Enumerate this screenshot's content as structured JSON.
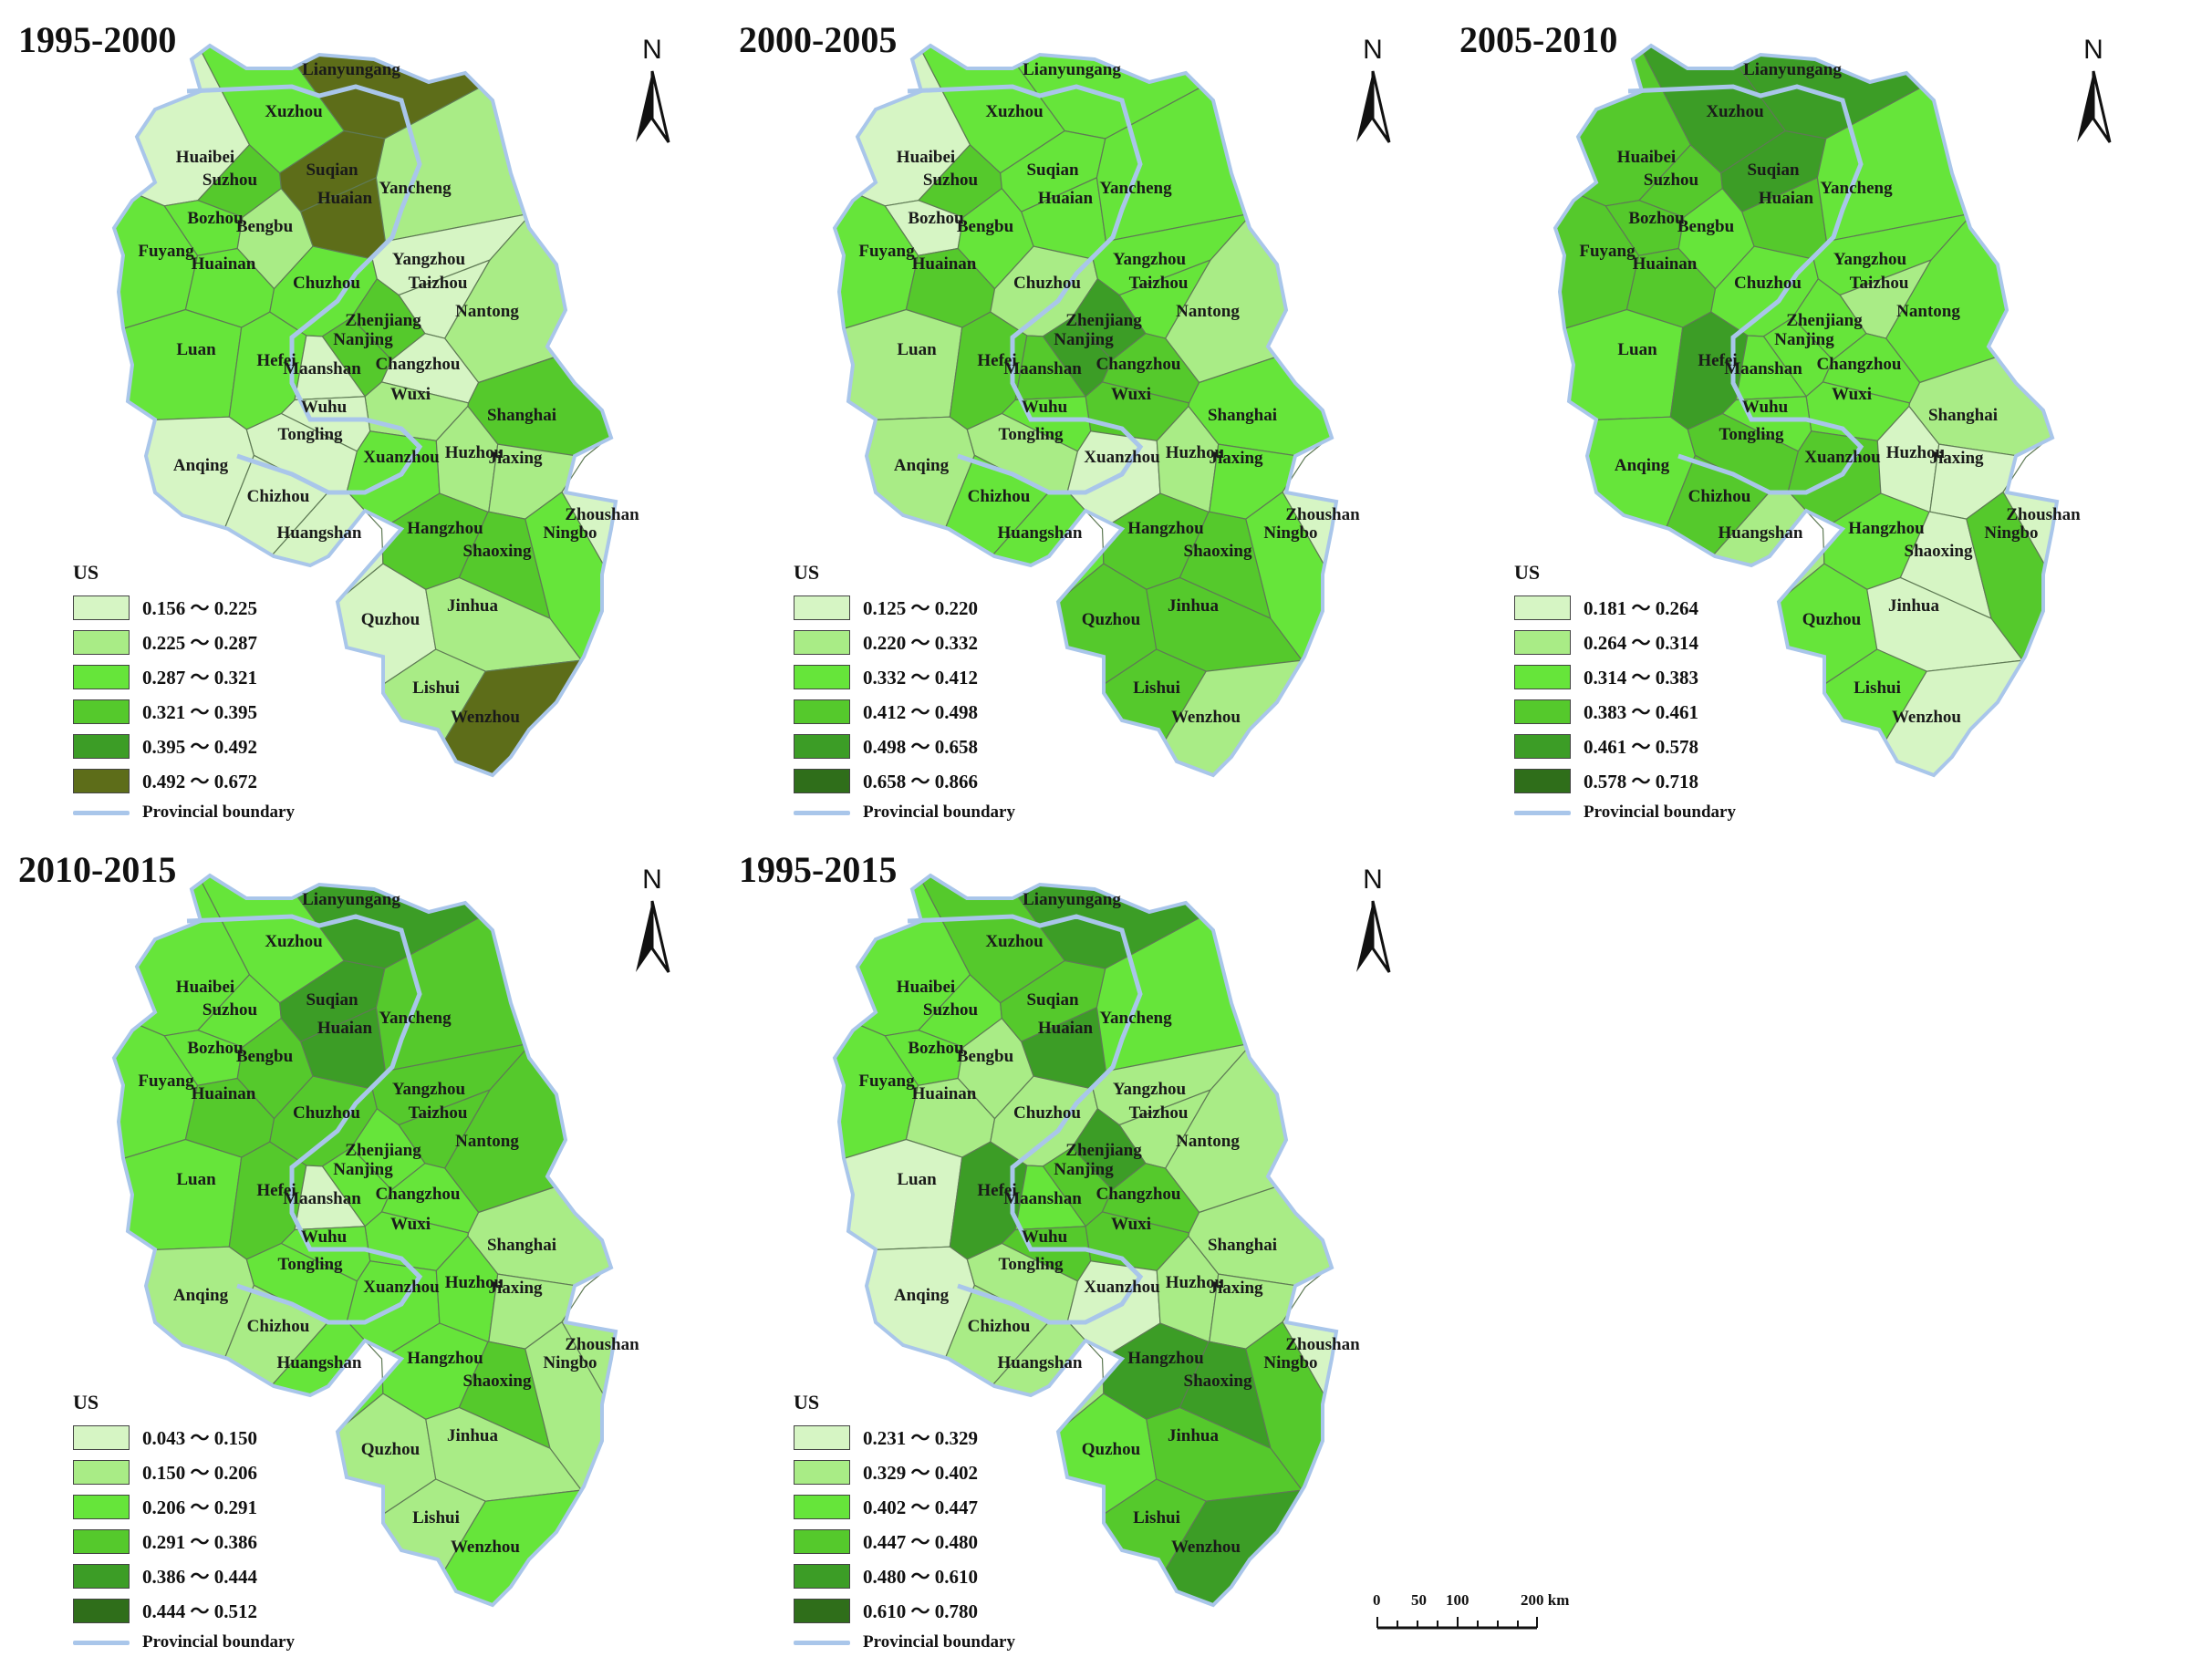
{
  "map": {
    "legend_title": "US",
    "boundary_label": "Provincial boundary",
    "north_label": "N",
    "scale": {
      "marks": [
        "0",
        "50",
        "100",
        "200 km"
      ]
    },
    "cities": [
      "Lianyungang",
      "Xuzhou",
      "Huaibei",
      "Suzhou",
      "Suqian",
      "Huaian",
      "Bozhou",
      "Bengbu",
      "Yancheng",
      "Fuyang",
      "Huainan",
      "Chuzhou",
      "Yangzhou",
      "Taizhou",
      "Nantong",
      "Zhenjiang",
      "Luan",
      "Hefei",
      "Nanjing",
      "Maanshan",
      "Changzhou",
      "Wuxi",
      "Wuhu",
      "Shanghai",
      "Anqing",
      "Tongling",
      "Xuanzhou",
      "Huzhou",
      "Jiaxing",
      "Chizhou",
      "Zhoushan",
      "Huangshan",
      "Hangzhou",
      "Shaoxing",
      "Ningbo",
      "Quzhou",
      "Jinhua",
      "Lishui",
      "Wenzhou"
    ],
    "palette": [
      "#d6f5c4",
      "#a9ec86",
      "#66e53a",
      "#55c92c",
      "#3c9d26",
      "#2f6e1a",
      "#5d6d19"
    ]
  },
  "panels": [
    {
      "title": "1995-2000",
      "legend": [
        "0.156 ～ 0.225",
        "0.225 ～ 0.287",
        "0.287 ～ 0.321",
        "0.321 ～ 0.395",
        "0.395 ～ 0.492",
        "0.492 ～ 0.672"
      ],
      "classes": [
        6,
        3,
        1,
        4,
        6,
        6,
        3,
        2,
        2,
        3,
        3,
        3,
        1,
        1,
        2,
        4,
        3,
        3,
        4,
        1,
        1,
        2,
        1,
        4,
        1,
        1,
        3,
        2,
        2,
        1,
        1,
        1,
        4,
        4,
        3,
        1,
        2,
        2,
        6
      ]
    },
    {
      "title": "2000-2005",
      "legend": [
        "0.125 ～ 0.220",
        "0.220 ～ 0.332",
        "0.332 ～ 0.412",
        "0.412 ～ 0.498",
        "0.498 ～ 0.658",
        "0.658 ～ 0.866"
      ],
      "classes": [
        3,
        3,
        1,
        4,
        3,
        3,
        1,
        3,
        3,
        3,
        4,
        2,
        3,
        3,
        2,
        5,
        2,
        4,
        5,
        4,
        4,
        4,
        3,
        3,
        2,
        2,
        1,
        2,
        3,
        3,
        1,
        3,
        4,
        4,
        3,
        4,
        4,
        4,
        2
      ]
    },
    {
      "title": "2005-2010",
      "legend": [
        "0.181 ～ 0.264",
        "0.264 ～ 0.314",
        "0.314 ～ 0.383",
        "0.383 ～ 0.461",
        "0.461 ～ 0.578",
        "0.578 ～ 0.718"
      ],
      "classes": [
        5,
        5,
        4,
        4,
        5,
        4,
        4,
        3,
        3,
        4,
        4,
        3,
        3,
        2,
        3,
        3,
        3,
        5,
        3,
        3,
        3,
        3,
        3,
        2,
        3,
        4,
        4,
        1,
        1,
        4,
        1,
        2,
        3,
        1,
        4,
        3,
        1,
        3,
        1
      ]
    },
    {
      "title": "2010-2015",
      "legend": [
        "0.043 ～ 0.150",
        "0.150 ～ 0.206",
        "0.206 ～ 0.291",
        "0.291 ～ 0.386",
        "0.386 ～ 0.444",
        "0.444 ～ 0.512"
      ],
      "classes": [
        5,
        3,
        3,
        3,
        5,
        5,
        3,
        4,
        4,
        3,
        4,
        4,
        4,
        4,
        4,
        3,
        3,
        4,
        3,
        1,
        3,
        3,
        3,
        2,
        2,
        3,
        3,
        3,
        2,
        2,
        2,
        3,
        3,
        4,
        2,
        2,
        2,
        2,
        3
      ]
    },
    {
      "title": "1995-2015",
      "legend": [
        "0.231 ～ 0.329",
        "0.329 ～ 0.402",
        "0.402 ～ 0.447",
        "0.447 ～ 0.480",
        "0.480 ～ 0.610",
        "0.610 ～ 0.780"
      ],
      "classes": [
        5,
        4,
        3,
        3,
        4,
        5,
        3,
        2,
        3,
        3,
        2,
        2,
        2,
        2,
        2,
        5,
        1,
        5,
        4,
        3,
        4,
        4,
        4,
        2,
        1,
        2,
        1,
        2,
        2,
        2,
        1,
        2,
        5,
        5,
        4,
        3,
        4,
        4,
        5
      ]
    }
  ]
}
